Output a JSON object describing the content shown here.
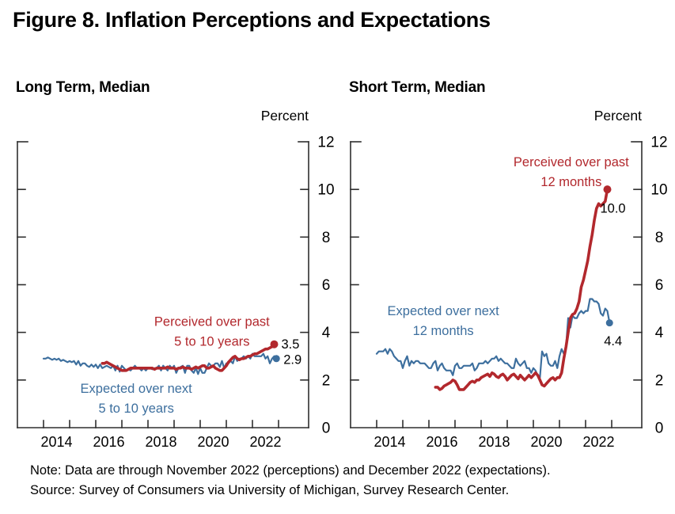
{
  "figure": {
    "title": "Figure 8. Inflation Perceptions and Expectations",
    "note": "Note: Data are through November 2022 (perceptions) and December 2022 (expectations).",
    "source": "Source: Survey of Consumers via University of Michigan, Survey Research Center."
  },
  "colors": {
    "red": "#b2282d",
    "blue": "#3d6f9e",
    "axis": "#2e2e2e",
    "text": "#000000"
  },
  "chart_data": [
    {
      "id": "long-term",
      "type": "line",
      "title": "Long Term, Median",
      "ylabel": "Percent",
      "ylim": [
        0,
        12
      ],
      "yticks": [
        0,
        2,
        4,
        6,
        8,
        10,
        12
      ],
      "xaxis": {
        "first_tick_year": 2014,
        "last_tick_year": 2023,
        "labels": [
          "2014",
          "2016",
          "2018",
          "2020",
          "2022"
        ]
      },
      "series": [
        {
          "role": "expected",
          "name": "Expected over next 5 to 10 years",
          "color": "blue",
          "frequency": "monthly",
          "start_year": 2014,
          "start_month": 1,
          "end_dot": true,
          "end_label": "2.9",
          "end_label_offset": [
            9,
            1
          ],
          "values": [
            2.9,
            2.9,
            2.95,
            2.9,
            2.85,
            2.9,
            2.85,
            2.9,
            2.8,
            2.85,
            2.8,
            2.75,
            2.8,
            2.75,
            2.8,
            2.65,
            2.8,
            2.6,
            2.7,
            2.7,
            2.6,
            2.55,
            2.65,
            2.55,
            2.65,
            2.5,
            2.65,
            2.5,
            2.55,
            2.6,
            2.55,
            2.5,
            2.6,
            2.4,
            2.6,
            2.35,
            2.6,
            2.5,
            2.4,
            2.45,
            2.4,
            2.5,
            2.6,
            2.5,
            2.5,
            2.4,
            2.5,
            2.4,
            2.5,
            2.5,
            2.45,
            2.5,
            2.5,
            2.6,
            2.4,
            2.6,
            2.5,
            2.4,
            2.6,
            2.5,
            2.6,
            2.3,
            2.5,
            2.55,
            2.6,
            2.3,
            2.6,
            2.6,
            2.4,
            2.3,
            2.5,
            2.25,
            2.5,
            2.3,
            2.3,
            2.5,
            2.7,
            2.6,
            2.6,
            2.7,
            2.7,
            2.55,
            2.8,
            2.5,
            2.7,
            2.7,
            2.8,
            2.7,
            3.0,
            2.8,
            2.9,
            2.9,
            3.0,
            2.9,
            3.0,
            2.9,
            3.1,
            3.0,
            3.0,
            3.0,
            3.0,
            3.1,
            2.9,
            3.0,
            2.7,
            2.9,
            3.0,
            2.9
          ]
        },
        {
          "role": "perceived",
          "name": "Perceived over past 5 to 10 years",
          "color": "red",
          "frequency": "monthly",
          "start_year": 2016,
          "start_month": 4,
          "end_dot": true,
          "end_label": "3.5",
          "end_label_offset": [
            9,
            0
          ],
          "values": [
            2.7,
            2.7,
            2.75,
            2.7,
            2.65,
            2.6,
            2.55,
            2.5,
            2.45,
            2.4,
            2.4,
            2.4,
            2.45,
            2.5,
            2.5,
            2.5,
            2.5,
            2.5,
            2.5,
            2.5,
            2.5,
            2.5,
            2.5,
            2.5,
            2.45,
            2.5,
            2.5,
            2.5,
            2.5,
            2.5,
            2.55,
            2.5,
            2.5,
            2.5,
            2.45,
            2.5,
            2.5,
            2.55,
            2.5,
            2.5,
            2.5,
            2.45,
            2.5,
            2.55,
            2.5,
            2.55,
            2.6,
            2.6,
            2.5,
            2.5,
            2.55,
            2.6,
            2.5,
            2.45,
            2.4,
            2.4,
            2.5,
            2.6,
            2.75,
            2.85,
            2.95,
            3.0,
            2.9,
            2.85,
            2.9,
            2.9,
            2.95,
            3.0,
            3.0,
            3.05,
            3.1,
            3.1,
            3.15,
            3.2,
            3.25,
            3.3,
            3.3,
            3.35,
            3.4,
            3.5
          ]
        }
      ],
      "annotations": [
        {
          "lines": [
            "Perceived over past",
            "5 to 10 years"
          ],
          "x_year": 2020.45,
          "y_value": 4.45,
          "color": "red"
        },
        {
          "lines": [
            "Expected over next",
            "5 to 10 years"
          ],
          "x_year": 2017.55,
          "y_value": 1.65,
          "color": "blue"
        }
      ]
    },
    {
      "id": "short-term",
      "type": "line",
      "title": "Short Term, Median",
      "ylabel": "Percent",
      "ylim": [
        0,
        12
      ],
      "yticks": [
        0,
        2,
        4,
        6,
        8,
        10,
        12
      ],
      "xaxis": {
        "first_tick_year": 2014,
        "last_tick_year": 2023,
        "labels": [
          "2014",
          "2016",
          "2018",
          "2020",
          "2022"
        ]
      },
      "series": [
        {
          "role": "expected",
          "name": "Expected over next 12 months",
          "color": "blue",
          "frequency": "monthly",
          "start_year": 2014,
          "start_month": 1,
          "end_dot": true,
          "end_label": "4.4",
          "end_label_offset": [
            -7,
            23
          ],
          "values": [
            3.1,
            3.2,
            3.2,
            3.2,
            3.3,
            3.1,
            3.3,
            3.2,
            3.0,
            2.9,
            2.8,
            2.8,
            2.5,
            2.8,
            3.0,
            2.6,
            2.8,
            2.7,
            2.8,
            2.8,
            2.7,
            2.7,
            2.7,
            2.6,
            2.5,
            2.5,
            2.7,
            2.8,
            2.4,
            2.6,
            2.7,
            2.5,
            2.4,
            2.4,
            2.4,
            2.2,
            2.6,
            2.7,
            2.5,
            2.5,
            2.6,
            2.6,
            2.6,
            2.6,
            2.7,
            2.4,
            2.5,
            2.7,
            2.7,
            2.7,
            2.8,
            2.7,
            2.8,
            2.9,
            2.9,
            3.0,
            2.8,
            2.9,
            2.8,
            2.7,
            2.7,
            2.6,
            2.5,
            2.5,
            2.9,
            2.7,
            2.6,
            2.7,
            2.8,
            2.5,
            2.5,
            2.3,
            2.5,
            2.4,
            2.2,
            2.1,
            3.2,
            3.0,
            3.1,
            2.7,
            2.6,
            2.6,
            2.8,
            2.5,
            3.0,
            3.3,
            3.1,
            3.4,
            4.6,
            4.2,
            4.7,
            4.6,
            4.6,
            4.8,
            4.9,
            4.8,
            4.9,
            4.9,
            5.4,
            5.4,
            5.3,
            5.3,
            5.2,
            4.8,
            4.7,
            5.0,
            4.9,
            4.4
          ]
        },
        {
          "role": "perceived",
          "name": "Perceived over past 12 months",
          "color": "red",
          "frequency": "monthly",
          "start_year": 2016,
          "start_month": 4,
          "end_dot": true,
          "end_label": "10.0",
          "end_label_offset": [
            -9,
            24
          ],
          "values": [
            1.7,
            1.7,
            1.6,
            1.65,
            1.75,
            1.8,
            1.85,
            1.9,
            2.0,
            1.95,
            1.8,
            1.6,
            1.6,
            1.6,
            1.7,
            1.8,
            1.9,
            1.95,
            1.9,
            2.0,
            2.0,
            2.1,
            2.15,
            2.2,
            2.25,
            2.15,
            2.3,
            2.25,
            2.15,
            2.1,
            2.2,
            2.25,
            2.15,
            2.0,
            2.1,
            2.2,
            2.25,
            2.15,
            2.05,
            2.2,
            2.1,
            2.0,
            2.1,
            2.2,
            2.1,
            2.2,
            2.3,
            2.2,
            2.0,
            1.8,
            1.75,
            1.85,
            1.95,
            2.05,
            2.1,
            2.0,
            2.1,
            2.1,
            2.3,
            2.9,
            3.4,
            4.0,
            4.6,
            4.75,
            4.8,
            5.0,
            5.3,
            5.9,
            6.2,
            6.6,
            7.0,
            7.6,
            8.1,
            8.7,
            9.2,
            9.4,
            9.3,
            9.4,
            9.5,
            10.0
          ]
        }
      ],
      "annotations": [
        {
          "lines": [
            "Perceived over past",
            "12 months"
          ],
          "x_year": 2021.45,
          "y_value": 11.15,
          "color": "red"
        },
        {
          "lines": [
            "Expected over next",
            "12 months"
          ],
          "x_year": 2016.55,
          "y_value": 4.9,
          "color": "blue"
        }
      ]
    }
  ]
}
